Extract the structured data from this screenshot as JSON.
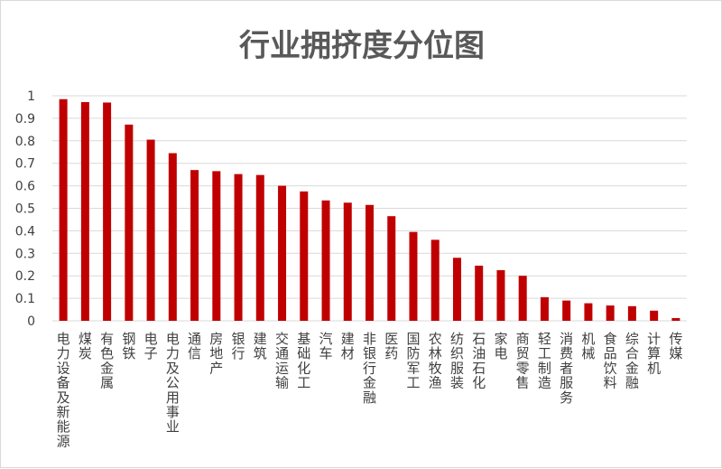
{
  "chart_data": {
    "type": "bar",
    "title": "行业拥挤度分位图",
    "xlabel": "",
    "ylabel": "",
    "ylim": [
      0,
      1
    ],
    "yticks": [
      "0",
      "0.1",
      "0.2",
      "0.3",
      "0.4",
      "0.5",
      "0.6",
      "0.7",
      "0.8",
      "0.9",
      "1"
    ],
    "grid": true,
    "bar_color": "#c00000",
    "categories": [
      "电力设备及新能源",
      "煤炭",
      "有色金属",
      "钢铁",
      "电子",
      "电力及公用事业",
      "通信",
      "房地产",
      "银行",
      "建筑",
      "交通运输",
      "基础化工",
      "汽车",
      "建材",
      "非银行金融",
      "医药",
      "国防军工",
      "农林牧渔",
      "纺织服装",
      "石油石化",
      "家电",
      "商贸零售",
      "轻工制造",
      "消费者服务",
      "机械",
      "食品饮料",
      "综合金融",
      "计算机",
      "传媒"
    ],
    "values": [
      0.985,
      0.972,
      0.97,
      0.872,
      0.805,
      0.745,
      0.67,
      0.665,
      0.652,
      0.648,
      0.6,
      0.575,
      0.535,
      0.525,
      0.515,
      0.465,
      0.395,
      0.36,
      0.28,
      0.245,
      0.225,
      0.2,
      0.105,
      0.09,
      0.078,
      0.068,
      0.065,
      0.045,
      0.012
    ]
  }
}
